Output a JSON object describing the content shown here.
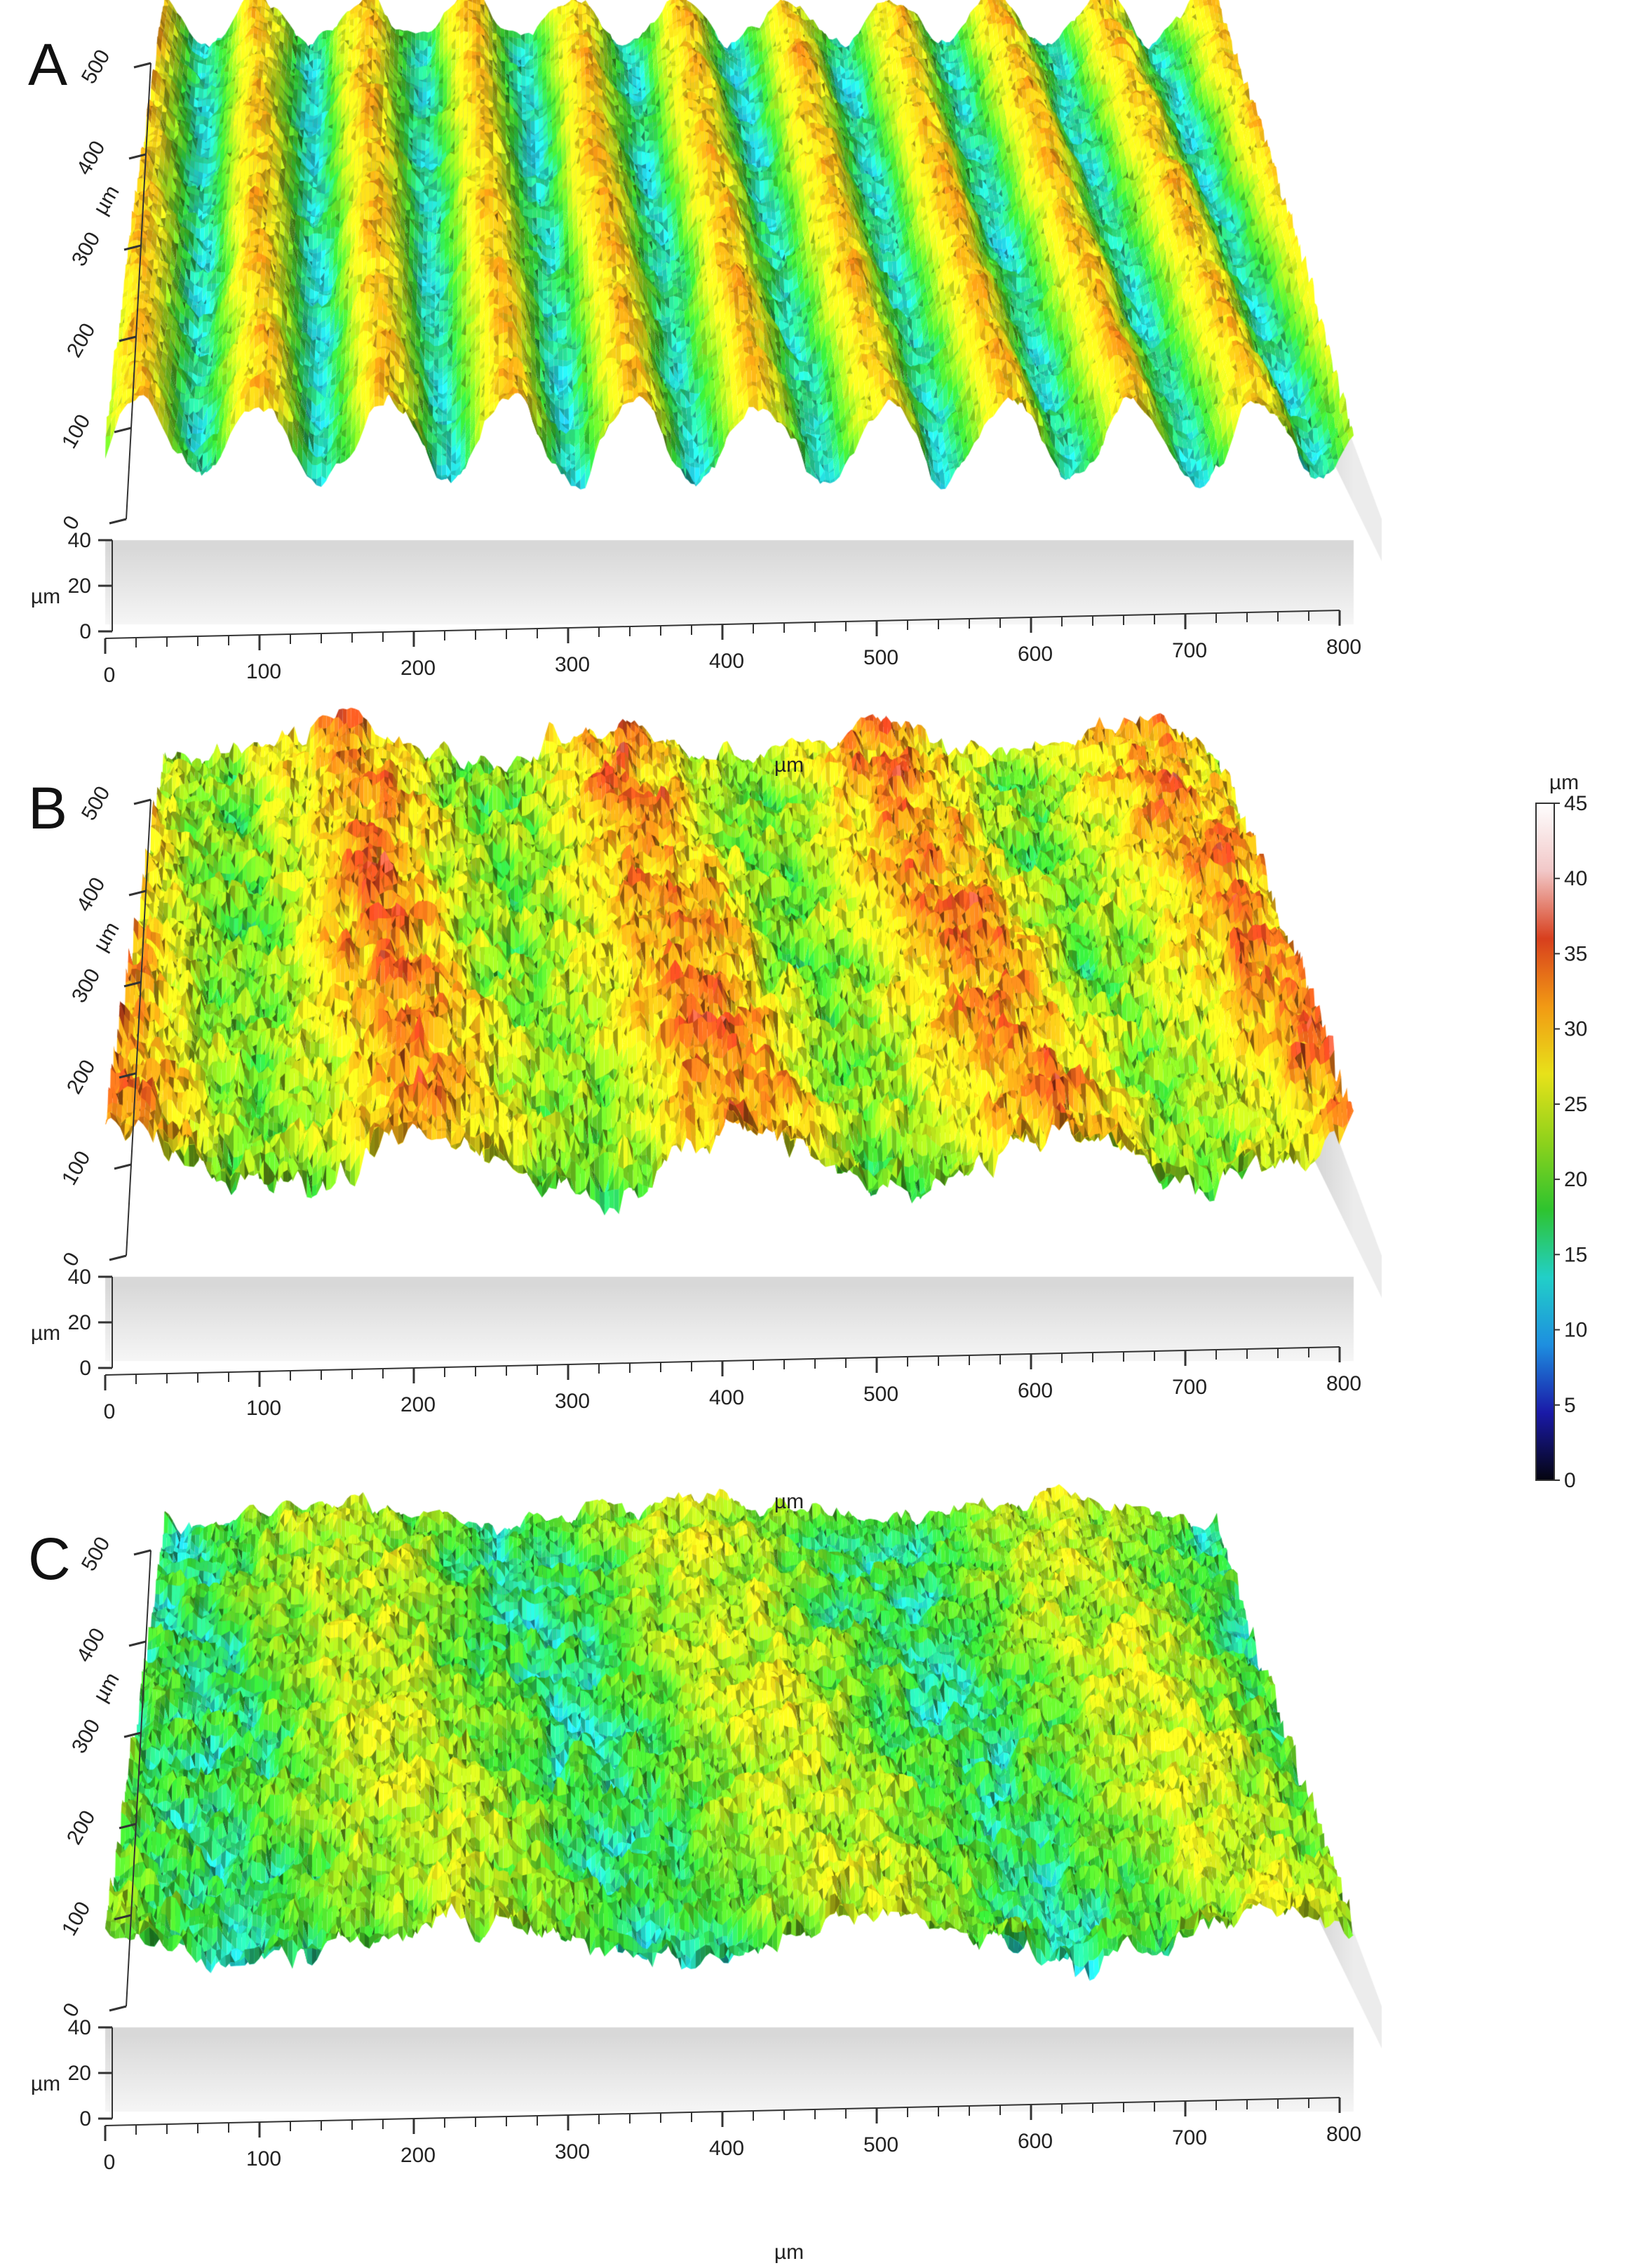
{
  "chart_data": {
    "type": "surface-3d",
    "panels": [
      {
        "label": "A",
        "x_axis": {
          "label": "µm",
          "range": [
            0,
            800
          ],
          "ticks": [
            0,
            100,
            200,
            300,
            400,
            500,
            600,
            700,
            800
          ]
        },
        "y_axis": {
          "label": "µm",
          "range": [
            0,
            500
          ],
          "ticks": [
            0,
            100,
            200,
            300,
            400,
            500
          ]
        },
        "z_axis": {
          "label": "µm",
          "range": [
            0,
            40
          ],
          "ticks": [
            0,
            20,
            40
          ]
        },
        "surface": {
          "pattern": "ridges",
          "ridge_count": 10,
          "mean_height": 22,
          "amplitude": 8,
          "roughness": 2.5
        }
      },
      {
        "label": "B",
        "x_axis": {
          "label": "µm",
          "range": [
            0,
            800
          ],
          "ticks": [
            0,
            100,
            200,
            300,
            400,
            500,
            600,
            700,
            800
          ]
        },
        "y_axis": {
          "label": "µm",
          "range": [
            0,
            500
          ],
          "ticks": [
            0,
            100,
            200,
            300,
            400,
            500
          ]
        },
        "z_axis": {
          "label": "µm",
          "range": [
            0,
            40
          ],
          "ticks": [
            0,
            20,
            40
          ]
        },
        "surface": {
          "pattern": "rough-ridges",
          "ridge_count": 4,
          "mean_height": 26,
          "amplitude": 6,
          "roughness": 5
        }
      },
      {
        "label": "C",
        "x_axis": {
          "label": "µm",
          "range": [
            0,
            800
          ],
          "ticks": [
            0,
            100,
            200,
            300,
            400,
            500,
            600,
            700,
            800
          ]
        },
        "y_axis": {
          "label": "µm",
          "range": [
            0,
            500
          ],
          "ticks": [
            0,
            100,
            200,
            300,
            400,
            500
          ]
        },
        "z_axis": {
          "label": "µm",
          "range": [
            0,
            40
          ],
          "ticks": [
            0,
            20,
            40
          ]
        },
        "surface": {
          "pattern": "mottled",
          "ridge_count": 3,
          "mean_height": 20,
          "amplitude": 4,
          "roughness": 4
        }
      }
    ],
    "colorbar": {
      "unit": "µm",
      "range": [
        0,
        45
      ],
      "ticks": [
        0,
        5,
        10,
        15,
        20,
        25,
        30,
        35,
        40,
        45
      ],
      "colors": [
        "#050510",
        "#1a1aa8",
        "#1e8fe0",
        "#22d0c8",
        "#2fc42f",
        "#8fd21c",
        "#e8e21a",
        "#f29a14",
        "#d8401e",
        "#f2c8c8",
        "#ffffff"
      ]
    }
  }
}
